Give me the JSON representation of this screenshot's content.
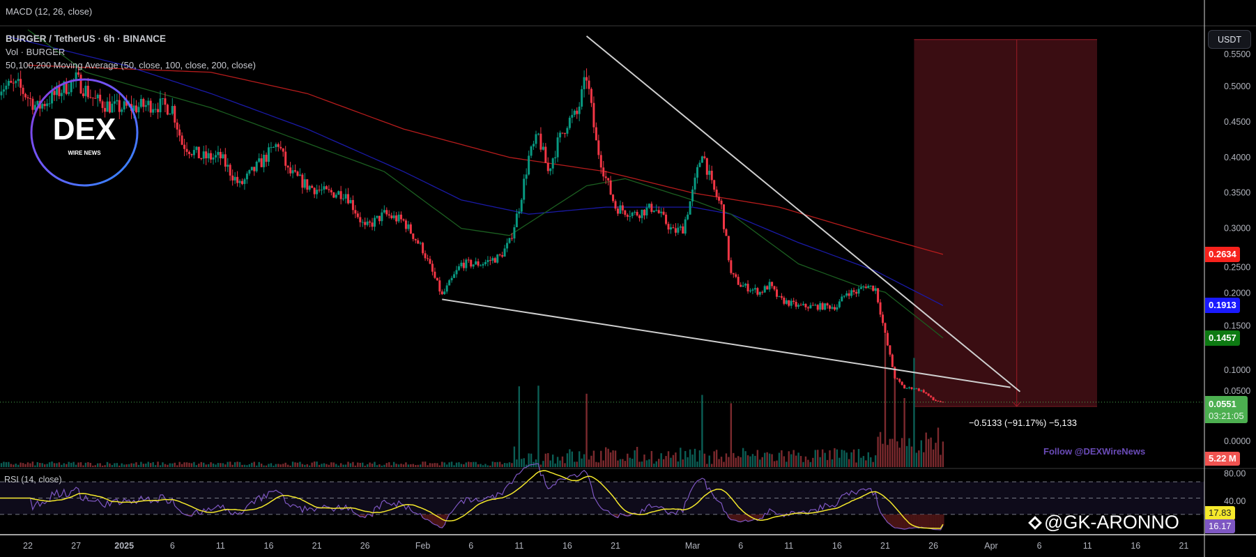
{
  "macd_legend": "MACD (12, 26, close)",
  "legend": {
    "symbol": "BURGER / TetherUS · 6h · BINANCE",
    "volume": "Vol · BURGER",
    "moving_average": "50,100,200 Moving Average (50, close, 100, close, 200, close)"
  },
  "rsi_legend": "RSI (14, close)",
  "currency_button": "USDT",
  "measurement_label": "−0.5133 (−91.17%) −5,133",
  "follow_text": "Follow @DEXWireNews",
  "watermark": "@GK-ARONNO",
  "logo": {
    "main": "DEX",
    "sub": "WIRE NEWS"
  },
  "price_boxes": {
    "ma200": {
      "value": "0.2634",
      "color": "#f7221c"
    },
    "ma100": {
      "value": "0.1913",
      "color": "#1a1aff"
    },
    "ma50": {
      "value": "0.1457",
      "color": "#0d7a12"
    },
    "last": {
      "value": "0.0551",
      "countdown": "03:21:05",
      "color": "#4caf50"
    },
    "volume": {
      "value": "5.22 M",
      "color": "#f05350"
    },
    "rsi_ma": {
      "value": "17.83",
      "color": "#f5e92b"
    },
    "rsi": {
      "value": "16.17",
      "color": "#7e57c2"
    }
  },
  "chart_data": {
    "type": "candlestick",
    "title": "BURGER / TetherUS · 6h · BINANCE",
    "price_axis": {
      "unit": "USDT",
      "range": [
        0,
        0.55
      ],
      "ticks": [
        "0.5500",
        "0.5000",
        "0.4500",
        "0.4000",
        "0.3500",
        "0.3000",
        "0.2500",
        "0.2000",
        "0.1500",
        "0.1000",
        "0.0500",
        "0.0000"
      ]
    },
    "rsi_axis": {
      "ticks": [
        "80.00",
        "40.00"
      ],
      "bands": [
        30,
        50,
        70
      ]
    },
    "time_axis": {
      "ticks": [
        "22",
        "27",
        "2025",
        "6",
        "11",
        "16",
        "21",
        "26",
        "Feb",
        "6",
        "11",
        "16",
        "21",
        "Mar",
        "6",
        "11",
        "16",
        "21",
        "26",
        "Apr",
        "6",
        "11",
        "16",
        "21"
      ]
    },
    "colors": {
      "up": "#089981",
      "down": "#f23645",
      "ma50": "#1b5e20",
      "ma100": "#1a1aa8",
      "ma200": "#b71c1c",
      "rsi": "#7e57c2",
      "rsi_ma": "#f5e92b",
      "trendline": "#cfcfcf",
      "measure_box": "#3a0d12"
    },
    "close_path": [
      [
        "2024-12-19",
        0.5
      ],
      [
        "2024-12-21",
        0.5
      ],
      [
        "2024-12-23",
        0.47
      ],
      [
        "2024-12-25",
        0.49
      ],
      [
        "2024-12-27",
        0.51
      ],
      [
        "2024-12-29",
        0.48
      ],
      [
        "2024-12-31",
        0.47
      ],
      [
        "2025-01-02",
        0.47
      ],
      [
        "2025-01-04",
        0.475
      ],
      [
        "2025-01-06",
        0.47
      ],
      [
        "2025-01-07",
        0.42
      ],
      [
        "2025-01-09",
        0.4
      ],
      [
        "2025-01-11",
        0.4
      ],
      [
        "2025-01-13",
        0.36
      ],
      [
        "2025-01-15",
        0.39
      ],
      [
        "2025-01-17",
        0.42
      ],
      [
        "2025-01-18",
        0.38
      ],
      [
        "2025-01-20",
        0.36
      ],
      [
        "2025-01-22",
        0.35
      ],
      [
        "2025-01-24",
        0.35
      ],
      [
        "2025-01-26",
        0.3
      ],
      [
        "2025-01-28",
        0.32
      ],
      [
        "2025-01-30",
        0.31
      ],
      [
        "2025-02-01",
        0.27
      ],
      [
        "2025-02-03",
        0.205
      ],
      [
        "2025-02-05",
        0.25
      ],
      [
        "2025-02-07",
        0.25
      ],
      [
        "2025-02-09",
        0.26
      ],
      [
        "2025-02-10",
        0.28
      ],
      [
        "2025-02-11",
        0.33
      ],
      [
        "2025-02-12",
        0.4
      ],
      [
        "2025-02-13",
        0.43
      ],
      [
        "2025-02-14",
        0.38
      ],
      [
        "2025-02-15",
        0.42
      ],
      [
        "2025-02-16",
        0.45
      ],
      [
        "2025-02-17",
        0.46
      ],
      [
        "2025-02-18",
        0.515
      ],
      [
        "2025-02-19",
        0.42
      ],
      [
        "2025-02-20",
        0.37
      ],
      [
        "2025-02-21",
        0.33
      ],
      [
        "2025-02-23",
        0.32
      ],
      [
        "2025-02-25",
        0.33
      ],
      [
        "2025-02-27",
        0.295
      ],
      [
        "2025-02-28",
        0.3
      ],
      [
        "2025-03-01",
        0.35
      ],
      [
        "2025-03-02",
        0.41
      ],
      [
        "2025-03-03",
        0.36
      ],
      [
        "2025-03-04",
        0.33
      ],
      [
        "2025-03-05",
        0.235
      ],
      [
        "2025-03-06",
        0.22
      ],
      [
        "2025-03-08",
        0.21
      ],
      [
        "2025-03-09",
        0.22
      ],
      [
        "2025-03-10",
        0.2
      ],
      [
        "2025-03-12",
        0.19
      ],
      [
        "2025-03-14",
        0.19
      ],
      [
        "2025-03-16",
        0.19
      ],
      [
        "2025-03-17",
        0.21
      ],
      [
        "2025-03-18",
        0.21
      ],
      [
        "2025-03-19",
        0.22
      ],
      [
        "2025-03-20",
        0.215
      ],
      [
        "2025-03-21",
        0.15
      ],
      [
        "2025-03-22",
        0.09
      ],
      [
        "2025-03-23",
        0.075
      ],
      [
        "2025-03-24",
        0.075
      ],
      [
        "2025-03-25",
        0.07
      ],
      [
        "2025-03-26",
        0.058
      ],
      [
        "2025-03-27",
        0.0551
      ]
    ],
    "ma200": [
      [
        "2024-12-22",
        0.53
      ],
      [
        "2025-01-10",
        0.52
      ],
      [
        "2025-01-20",
        0.49
      ],
      [
        "2025-01-30",
        0.44
      ],
      [
        "2025-02-10",
        0.4
      ],
      [
        "2025-02-20",
        0.38
      ],
      [
        "2025-03-01",
        0.35
      ],
      [
        "2025-03-10",
        0.33
      ],
      [
        "2025-03-20",
        0.29
      ],
      [
        "2025-03-27",
        0.2634
      ]
    ],
    "ma100": [
      [
        "2024-12-20",
        0.57
      ],
      [
        "2025-01-01",
        0.53
      ],
      [
        "2025-01-10",
        0.49
      ],
      [
        "2025-01-20",
        0.44
      ],
      [
        "2025-01-30",
        0.38
      ],
      [
        "2025-02-05",
        0.34
      ],
      [
        "2025-02-12",
        0.32
      ],
      [
        "2025-02-20",
        0.33
      ],
      [
        "2025-03-01",
        0.33
      ],
      [
        "2025-03-05",
        0.32
      ],
      [
        "2025-03-12",
        0.28
      ],
      [
        "2025-03-20",
        0.24
      ],
      [
        "2025-03-27",
        0.1913
      ]
    ],
    "ma50": [
      [
        "2024-12-22",
        0.58
      ],
      [
        "2024-12-28",
        0.52
      ],
      [
        "2025-01-10",
        0.47
      ],
      [
        "2025-01-20",
        0.42
      ],
      [
        "2025-01-28",
        0.38
      ],
      [
        "2025-02-05",
        0.3
      ],
      [
        "2025-02-10",
        0.29
      ],
      [
        "2025-02-18",
        0.36
      ],
      [
        "2025-02-22",
        0.37
      ],
      [
        "2025-03-01",
        0.34
      ],
      [
        "2025-03-05",
        0.32
      ],
      [
        "2025-03-12",
        0.25
      ],
      [
        "2025-03-18",
        0.22
      ],
      [
        "2025-03-21",
        0.21
      ],
      [
        "2025-03-27",
        0.1457
      ]
    ],
    "trendlines": [
      {
        "from": [
          "2025-02-18",
          0.571
        ],
        "to": [
          "2025-04-04",
          0.07
        ]
      },
      {
        "from": [
          "2025-02-03",
          0.2
        ],
        "to": [
          "2025-04-03",
          0.076
        ]
      }
    ],
    "measurement": {
      "from_date": "2025-03-24",
      "to_date": "2025-04-12",
      "price_top": 0.566,
      "price_bottom": 0.049,
      "change": -0.5133,
      "change_pct": -91.17
    },
    "volume_spikes": [
      "2025-02-11",
      "2025-02-13",
      "2025-02-18",
      "2025-03-02",
      "2025-03-05",
      "2025-03-21",
      "2025-03-22",
      "2025-03-23",
      "2025-03-24"
    ],
    "last_price": 0.0551,
    "rsi_last": 16.17,
    "rsi_ma_last": 17.83
  }
}
